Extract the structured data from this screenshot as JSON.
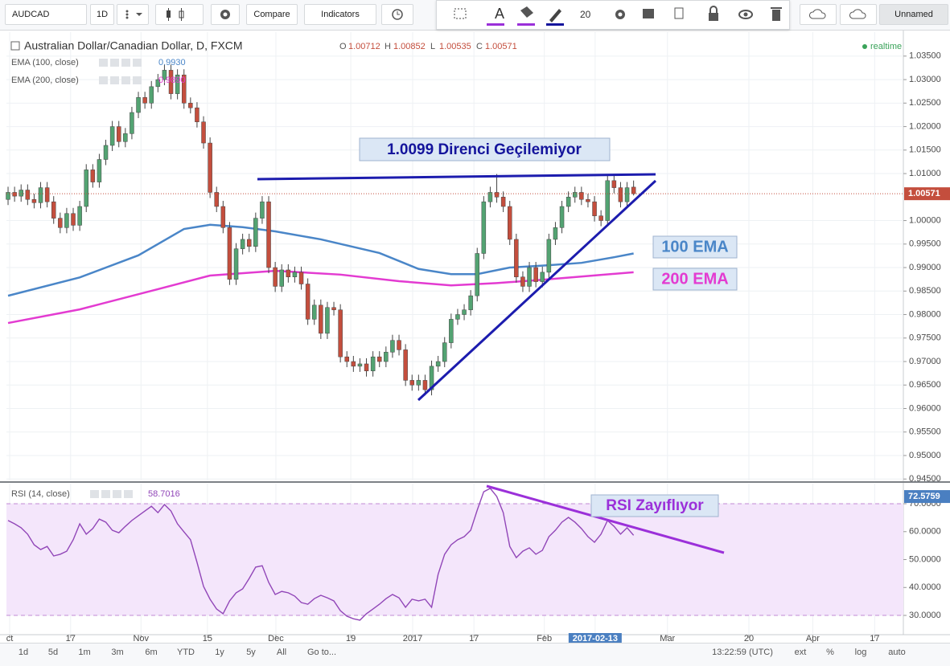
{
  "toolbar": {
    "symbol": "AUDCAD",
    "interval": "1D",
    "compare": "Compare",
    "indicators": "Indicators",
    "font_size": "20",
    "layout_name": "Unnamed"
  },
  "bottom_bar": {
    "ranges": [
      "1d",
      "5d",
      "1m",
      "3m",
      "6m",
      "YTD",
      "1y",
      "5y",
      "All"
    ],
    "goto": "Go to...",
    "time": "13:22:59 (UTC)",
    "options": [
      "ext",
      "%",
      "log",
      "auto"
    ]
  },
  "chart_data": [
    {
      "type": "candlestick",
      "title": "Australian Dollar/Canadian Dollar, D, FXCM",
      "ohlc_labels": [
        "O",
        "H",
        "L",
        "C"
      ],
      "status": "realtime",
      "up_color": "#53a372",
      "down_color": "#c44e3d",
      "grid": true,
      "xlim": [
        -0.25,
        137.4
      ],
      "ylim": [
        0.9447,
        1.0401
      ],
      "yticks": [
        {
          "value": 1.035,
          "label": "1.03500"
        },
        {
          "value": 1.03,
          "label": "1.03000"
        },
        {
          "value": 1.025,
          "label": "1.02500"
        },
        {
          "value": 1.02,
          "label": "1.02000"
        },
        {
          "value": 1.015,
          "label": "1.01500"
        },
        {
          "value": 1.01,
          "label": "1.01000"
        },
        {
          "value": 1.0,
          "label": "1.00000"
        },
        {
          "value": 0.995,
          "label": "0.99500"
        },
        {
          "value": 0.99,
          "label": "0.99000"
        },
        {
          "value": 0.985,
          "label": "0.98500"
        },
        {
          "value": 0.98,
          "label": "0.98000"
        },
        {
          "value": 0.975,
          "label": "0.97500"
        },
        {
          "value": 0.97,
          "label": "0.97000"
        },
        {
          "value": 0.965,
          "label": "0.96500"
        },
        {
          "value": 0.96,
          "label": "0.96000"
        },
        {
          "value": 0.955,
          "label": "0.95500"
        },
        {
          "value": 0.95,
          "label": "0.95000"
        },
        {
          "value": 0.945,
          "label": "0.94500"
        }
      ],
      "candles": [
        [
          1.0045,
          1.0072,
          1.0033,
          1.006
        ],
        [
          1.006,
          1.0072,
          1.004,
          1.0052
        ],
        [
          1.0052,
          1.0077,
          1.004,
          1.0065
        ],
        [
          1.0065,
          1.0077,
          1.0033,
          1.0045
        ],
        [
          1.0045,
          1.0057,
          1.0026,
          1.0038
        ],
        [
          1.0038,
          1.0082,
          1.0026,
          1.007
        ],
        [
          1.007,
          1.0082,
          1.0028,
          1.004
        ],
        [
          1.004,
          1.0052,
          0.9993,
          1.0005
        ],
        [
          1.0005,
          1.0017,
          0.9973,
          0.9985
        ],
        [
          0.9985,
          1.0027,
          0.9973,
          1.0015
        ],
        [
          1.0015,
          1.0027,
          0.9978,
          0.999
        ],
        [
          0.999,
          1.0042,
          0.9978,
          1.003
        ],
        [
          1.003,
          1.012,
          1.0018,
          1.0108
        ],
        [
          1.0108,
          1.012,
          1.007,
          1.0082
        ],
        [
          1.0082,
          1.0142,
          1.007,
          1.013
        ],
        [
          1.013,
          1.0172,
          1.0118,
          1.016
        ],
        [
          1.016,
          1.0212,
          1.0148,
          1.02
        ],
        [
          1.02,
          1.0212,
          1.0156,
          1.0168
        ],
        [
          1.0168,
          1.0197,
          1.0156,
          1.0185
        ],
        [
          1.0185,
          1.0242,
          1.0173,
          1.023
        ],
        [
          1.023,
          1.0274,
          1.0218,
          1.0262
        ],
        [
          1.0262,
          1.0274,
          1.0238,
          1.025
        ],
        [
          1.025,
          1.0297,
          1.0238,
          1.0285
        ],
        [
          1.0285,
          1.0312,
          1.0273,
          1.03
        ],
        [
          1.03,
          1.0332,
          1.0288,
          1.032
        ],
        [
          1.032,
          1.0332,
          1.0258,
          1.027
        ],
        [
          1.027,
          1.0322,
          1.0258,
          1.031
        ],
        [
          1.031,
          1.0322,
          1.0238,
          1.025
        ],
        [
          1.025,
          1.0262,
          1.0228,
          1.024
        ],
        [
          1.024,
          1.0252,
          1.0198,
          1.021
        ],
        [
          1.021,
          1.0222,
          1.0153,
          1.0165
        ],
        [
          1.0165,
          1.0177,
          1.0048,
          1.006
        ],
        [
          1.006,
          1.0072,
          1.0018,
          1.003
        ],
        [
          1.003,
          1.0042,
          0.9973,
          0.9985
        ],
        [
          0.9985,
          0.9997,
          0.9863,
          0.9875
        ],
        [
          0.9875,
          0.9952,
          0.9863,
          0.994
        ],
        [
          0.994,
          0.9972,
          0.9928,
          0.996
        ],
        [
          0.996,
          0.9972,
          0.9933,
          0.9945
        ],
        [
          0.9945,
          1.0017,
          0.9933,
          1.0005
        ],
        [
          1.0005,
          1.0052,
          0.9993,
          1.004
        ],
        [
          1.004,
          1.0052,
          0.9888,
          0.99
        ],
        [
          0.99,
          0.9912,
          0.9848,
          0.986
        ],
        [
          0.986,
          0.9907,
          0.9848,
          0.9895
        ],
        [
          0.9895,
          0.9907,
          0.9868,
          0.988
        ],
        [
          0.988,
          0.9902,
          0.9868,
          0.989
        ],
        [
          0.989,
          0.9902,
          0.9853,
          0.9865
        ],
        [
          0.9865,
          0.9877,
          0.9778,
          0.979
        ],
        [
          0.979,
          0.9832,
          0.9778,
          0.982
        ],
        [
          0.982,
          0.9832,
          0.9748,
          0.976
        ],
        [
          0.976,
          0.9827,
          0.9748,
          0.9815
        ],
        [
          0.9815,
          0.9827,
          0.9798,
          0.981
        ],
        [
          0.981,
          0.9822,
          0.9698,
          0.971
        ],
        [
          0.971,
          0.9722,
          0.9688,
          0.97
        ],
        [
          0.97,
          0.9712,
          0.9678,
          0.969
        ],
        [
          0.969,
          0.9707,
          0.9678,
          0.9695
        ],
        [
          0.9695,
          0.9707,
          0.9668,
          0.968
        ],
        [
          0.968,
          0.9722,
          0.9668,
          0.971
        ],
        [
          0.971,
          0.9722,
          0.9688,
          0.97
        ],
        [
          0.97,
          0.9732,
          0.9688,
          0.972
        ],
        [
          0.972,
          0.9757,
          0.9708,
          0.9745
        ],
        [
          0.9745,
          0.9757,
          0.9713,
          0.9725
        ],
        [
          0.9725,
          0.9737,
          0.9648,
          0.966
        ],
        [
          0.966,
          0.9672,
          0.9638,
          0.965
        ],
        [
          0.965,
          0.9672,
          0.9638,
          0.966
        ],
        [
          0.966,
          0.9672,
          0.9628,
          0.964
        ],
        [
          0.964,
          0.9702,
          0.9628,
          0.969
        ],
        [
          0.969,
          0.9712,
          0.9678,
          0.97
        ],
        [
          0.97,
          0.9752,
          0.9688,
          0.974
        ],
        [
          0.974,
          0.9802,
          0.9728,
          0.979
        ],
        [
          0.979,
          0.9812,
          0.9778,
          0.98
        ],
        [
          0.98,
          0.9822,
          0.9788,
          0.981
        ],
        [
          0.981,
          0.9852,
          0.9798,
          0.984
        ],
        [
          0.984,
          0.9942,
          0.9828,
          0.993
        ],
        [
          0.993,
          1.0052,
          0.9918,
          1.004
        ],
        [
          1.004,
          1.0072,
          1.0028,
          1.006
        ],
        [
          1.006,
          1.0099,
          1.0038,
          1.005
        ],
        [
          1.005,
          1.0062,
          1.0018,
          1.003
        ],
        [
          1.003,
          1.0042,
          0.9948,
          0.996
        ],
        [
          0.996,
          0.9972,
          0.9868,
          0.988
        ],
        [
          0.988,
          0.9892,
          0.9848,
          0.986
        ],
        [
          0.986,
          0.9912,
          0.9848,
          0.99
        ],
        [
          0.99,
          0.9912,
          0.9858,
          0.987
        ],
        [
          0.987,
          0.9902,
          0.9858,
          0.989
        ],
        [
          0.989,
          0.9972,
          0.9878,
          0.996
        ],
        [
          0.996,
          0.9997,
          0.9948,
          0.9985
        ],
        [
          0.9985,
          1.0042,
          0.9973,
          1.003
        ],
        [
          1.003,
          1.0062,
          1.0018,
          1.005
        ],
        [
          1.005,
          1.0072,
          1.0038,
          1.006
        ],
        [
          1.006,
          1.0072,
          1.0033,
          1.0045
        ],
        [
          1.0045,
          1.0057,
          1.0028,
          1.004
        ],
        [
          1.004,
          1.0052,
          0.9998,
          1.001
        ],
        [
          1.001,
          1.0022,
          0.9988,
          1.0
        ],
        [
          1.0,
          1.0097,
          0.9988,
          1.0085
        ],
        [
          1.0085,
          1.0097,
          1.0058,
          1.007
        ],
        [
          1.007,
          1.0082,
          1.0028,
          1.004
        ],
        [
          1.004,
          1.0082,
          1.0028,
          1.007
        ],
        [
          1.00712,
          1.00852,
          1.00535,
          1.00571
        ]
      ],
      "series": [
        {
          "name": "EMA (100, close)",
          "color": "#4a86c8",
          "x": [
            0,
            11,
            20,
            27,
            31,
            36,
            41,
            48,
            57,
            63,
            68,
            72,
            77,
            83,
            88,
            93,
            96
          ],
          "values": [
            0.984,
            0.9879,
            0.9926,
            0.9982,
            0.9991,
            0.9986,
            0.9977,
            0.996,
            0.9931,
            0.9897,
            0.9886,
            0.9886,
            0.99,
            0.9905,
            0.991,
            0.9922,
            0.993
          ],
          "value_labels": [
            null,
            null,
            null,
            null,
            null,
            null,
            null,
            null,
            null,
            null,
            null,
            null,
            null,
            null,
            null,
            null,
            "0.9930"
          ]
        },
        {
          "name": "EMA (200, close)",
          "color": "#e33bd1",
          "x": [
            0,
            11,
            23,
            31,
            41,
            51,
            60,
            68,
            75,
            82,
            96
          ],
          "values": [
            0.9782,
            0.9811,
            0.9854,
            0.9883,
            0.9893,
            0.9885,
            0.9871,
            0.9862,
            0.9867,
            0.9874,
            0.989
          ],
          "value_labels": [
            null,
            null,
            null,
            null,
            null,
            null,
            null,
            null,
            null,
            null,
            "0.9890"
          ]
        }
      ],
      "annotations": [
        "1.0099 Direnci Geçilemiyor",
        "100 EMA",
        "200 EMA"
      ]
    },
    {
      "type": "line",
      "title": "RSI (14, close)",
      "color": "#9146b8",
      "grid": true,
      "band": [
        30,
        70
      ],
      "scale_marker": 72.5759,
      "xlim": [
        -0.25,
        137.4
      ],
      "ylim": [
        23.1,
        77.2
      ],
      "yticks": [
        {
          "value": 70,
          "label": "70.0000"
        },
        {
          "value": 60,
          "label": "60.0000"
        },
        {
          "value": 50,
          "label": "50.0000"
        },
        {
          "value": 40,
          "label": "40.0000"
        },
        {
          "value": 30,
          "label": "30.0000"
        }
      ],
      "xticks": [
        {
          "value": 0.25,
          "label": "ct"
        },
        {
          "value": 9.6,
          "label": "17"
        },
        {
          "value": 20.4,
          "label": "Nov"
        },
        {
          "value": 30.6,
          "label": "15"
        },
        {
          "value": 41.1,
          "label": "Dec"
        },
        {
          "value": 52.6,
          "label": "19"
        },
        {
          "value": 62.1,
          "label": "2017"
        },
        {
          "value": 71.5,
          "label": "17"
        },
        {
          "value": 82.3,
          "label": "Feb"
        },
        {
          "value": 90.1,
          "label": "2017-02-13"
        },
        {
          "value": 101.2,
          "label": "Mar"
        },
        {
          "value": 113.7,
          "label": "20"
        },
        {
          "value": 123.5,
          "label": "Apr"
        },
        {
          "value": 133,
          "label": "17"
        }
      ],
      "values": [
        64.0,
        62.8,
        61.4,
        59.1,
        55.3,
        53.6,
        54.7,
        51.3,
        51.9,
        53.0,
        57.1,
        62.8,
        59.1,
        61.1,
        64.5,
        63.4,
        60.5,
        59.6,
        61.9,
        64.0,
        65.7,
        67.4,
        69.1,
        66.8,
        69.7,
        67.4,
        62.8,
        59.9,
        57.1,
        49.0,
        40.4,
        35.8,
        32.3,
        30.6,
        35.2,
        38.1,
        39.5,
        43.2,
        47.3,
        47.8,
        41.8,
        37.5,
        38.6,
        38.1,
        36.9,
        34.6,
        34.0,
        36.0,
        37.2,
        36.3,
        35.2,
        31.7,
        29.7,
        28.8,
        28.3,
        30.6,
        32.3,
        34.0,
        36.0,
        37.5,
        36.3,
        32.9,
        35.8,
        35.2,
        35.8,
        32.9,
        44.7,
        51.9,
        55.3,
        57.1,
        58.2,
        60.5,
        67.7,
        74.3,
        75.5,
        72.6,
        66.8,
        54.7,
        50.7,
        53.0,
        54.2,
        51.9,
        53.3,
        58.2,
        60.5,
        63.4,
        65.1,
        63.4,
        61.1,
        58.2,
        56.2,
        59.1,
        64.0,
        61.9,
        59.1,
        61.4,
        58.7016
      ],
      "annotations": [
        "RSI Zayıflıyor"
      ]
    }
  ]
}
